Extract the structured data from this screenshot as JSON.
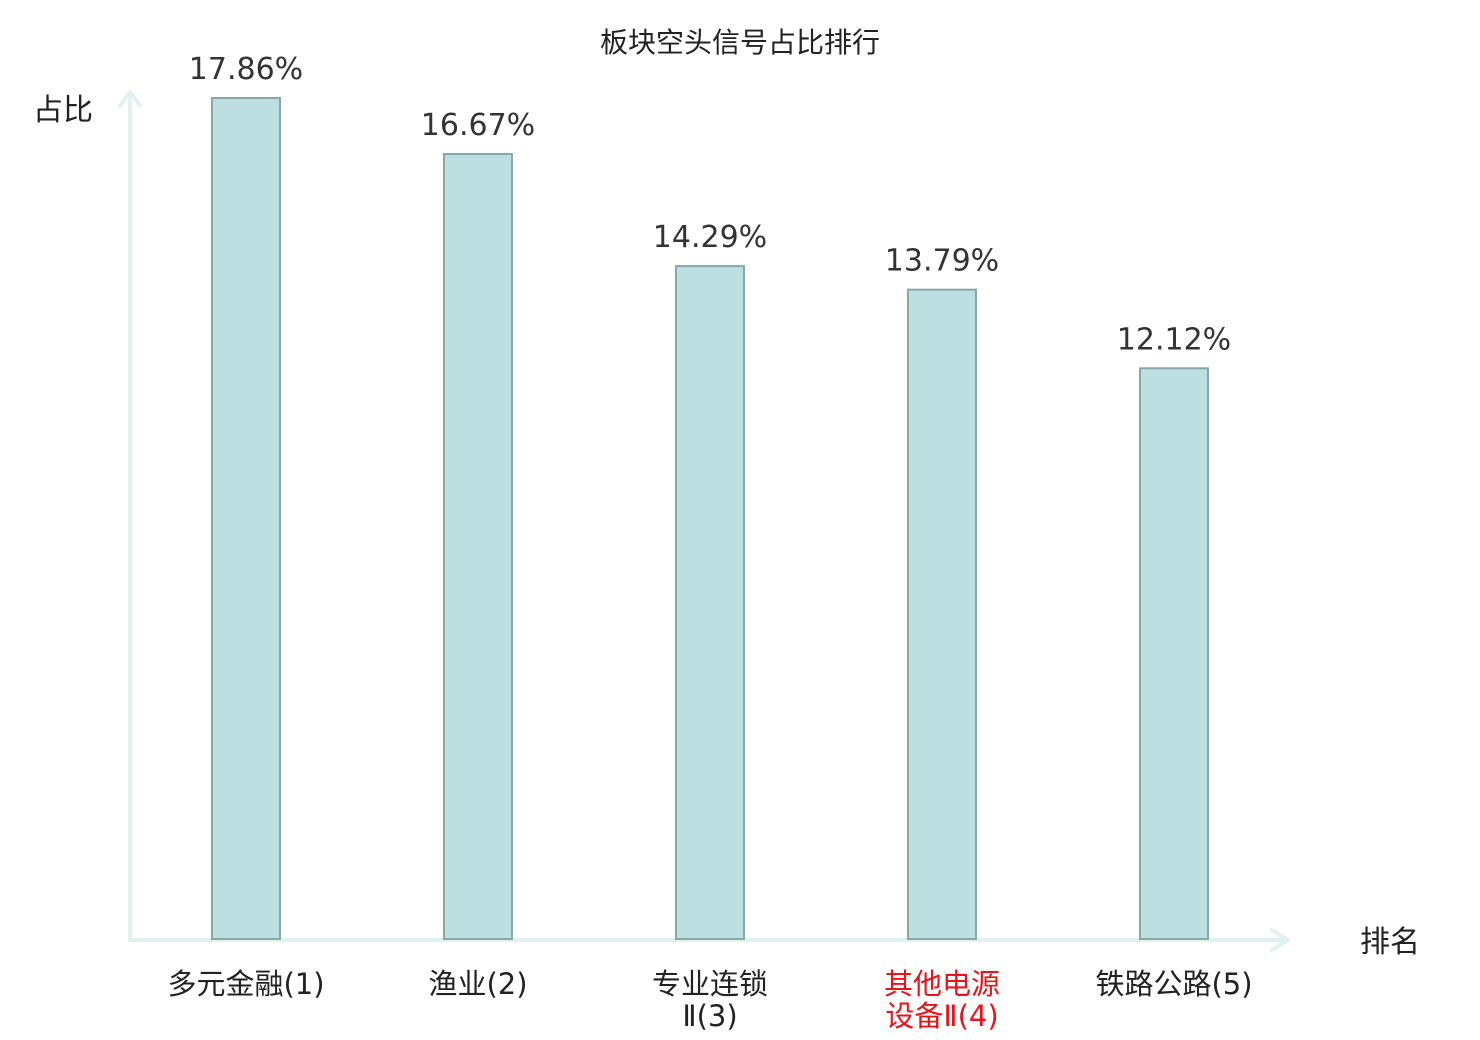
{
  "chart_data": {
    "type": "bar",
    "title": "板块空头信号占比排行",
    "xlabel": "排名",
    "ylabel": "占比",
    "categories": [
      {
        "lines": [
          "多元金融(1)"
        ],
        "highlight": false
      },
      {
        "lines": [
          "渔业(2)"
        ],
        "highlight": false
      },
      {
        "lines": [
          "专业连锁",
          "Ⅱ(3)"
        ],
        "highlight": false
      },
      {
        "lines": [
          "其他电源",
          "设备Ⅱ(4)"
        ],
        "highlight": true
      },
      {
        "lines": [
          "铁路公路(5)"
        ],
        "highlight": false
      }
    ],
    "values": [
      17.86,
      16.67,
      14.29,
      13.79,
      12.12
    ],
    "value_labels": [
      "17.86%",
      "16.67%",
      "14.29%",
      "13.79%",
      "12.12%"
    ],
    "ylim": [
      0,
      17.86
    ],
    "grid": false,
    "legend": "none",
    "colors": {
      "bar_fill": "#bcdfe2",
      "bar_stroke": "#8aa6a8",
      "axis": "#e0f2ef",
      "highlight": "#e8141b"
    }
  }
}
